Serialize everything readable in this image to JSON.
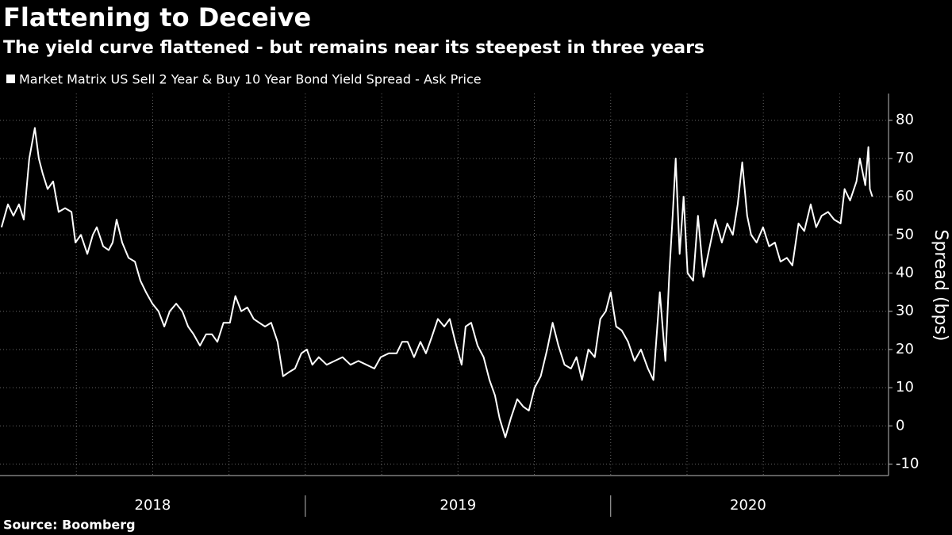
{
  "chart_data": {
    "type": "line",
    "title": "Flattening to Deceive",
    "subtitle": "The yield curve flattened - but remains near its steepest in three years",
    "source": "Source: Boomberg",
    "y_label": "Spread (bps)",
    "x": [
      2018.005,
      2018.026,
      2018.044,
      2018.062,
      2018.078,
      2018.096,
      2018.114,
      2018.127,
      2018.14,
      2018.156,
      2018.174,
      2018.192,
      2018.213,
      2018.234,
      2018.247,
      2018.265,
      2018.286,
      2018.304,
      2018.317,
      2018.338,
      2018.356,
      2018.369,
      2018.382,
      2018.4,
      2018.421,
      2018.442,
      2018.46,
      2018.478,
      2018.499,
      2018.519,
      2018.538,
      2018.556,
      2018.577,
      2018.597,
      2018.616,
      2018.634,
      2018.655,
      2018.675,
      2018.694,
      2018.712,
      2018.732,
      2018.753,
      2018.771,
      2018.79,
      2018.81,
      2018.831,
      2018.849,
      2018.868,
      2018.888,
      2018.909,
      2018.927,
      2018.945,
      2018.966,
      2018.987,
      2019.005,
      2019.023,
      2019.044,
      2019.07,
      2019.096,
      2019.122,
      2019.148,
      2019.174,
      2019.2,
      2019.226,
      2019.247,
      2019.273,
      2019.299,
      2019.317,
      2019.335,
      2019.356,
      2019.377,
      2019.395,
      2019.413,
      2019.434,
      2019.455,
      2019.473,
      2019.491,
      2019.512,
      2019.525,
      2019.543,
      2019.564,
      2019.584,
      2019.603,
      2019.621,
      2019.636,
      2019.655,
      2019.673,
      2019.694,
      2019.714,
      2019.732,
      2019.751,
      2019.771,
      2019.792,
      2019.81,
      2019.829,
      2019.849,
      2019.87,
      2019.888,
      2019.906,
      2019.927,
      2019.948,
      2019.966,
      2019.984,
      2020.0,
      2020.018,
      2020.036,
      2020.057,
      2020.078,
      2020.099,
      2020.122,
      2020.14,
      2020.161,
      2020.179,
      2020.192,
      2020.203,
      2020.213,
      2020.226,
      2020.239,
      2020.252,
      2020.27,
      2020.286,
      2020.304,
      2020.322,
      2020.343,
      2020.364,
      2020.382,
      2020.4,
      2020.416,
      2020.431,
      2020.447,
      2020.46,
      2020.478,
      2020.499,
      2020.519,
      2020.538,
      2020.556,
      2020.577,
      2020.595,
      2020.615,
      2020.634,
      2020.655,
      2020.673,
      2020.691,
      2020.712,
      2020.732,
      2020.753,
      2020.766,
      2020.784,
      2020.805,
      2020.816,
      2020.834,
      2020.844,
      2020.849,
      2020.857
    ],
    "series": [
      {
        "name": "Market Matrix US Sell 2 Year & Buy 10 Year Bond Yield Spread - Ask Price",
        "color": "#ffffff",
        "values": [
          52,
          58,
          55,
          58,
          54,
          70,
          78,
          70,
          66,
          62,
          64,
          56,
          57,
          56,
          48,
          50,
          45,
          50,
          52,
          47,
          46,
          48,
          54,
          48,
          44,
          43,
          38,
          35,
          32,
          30,
          26,
          30,
          32,
          30,
          26,
          24,
          21,
          24,
          24,
          22,
          27,
          27,
          34,
          30,
          31,
          28,
          27,
          26,
          27,
          22,
          13,
          14,
          15,
          19,
          20,
          16,
          18,
          16,
          17,
          18,
          16,
          17,
          16,
          15,
          18,
          19,
          19,
          22,
          22,
          18,
          22,
          19,
          23,
          28,
          26,
          28,
          22,
          16,
          26,
          27,
          21,
          18,
          12,
          8,
          2,
          -3,
          2,
          7,
          5,
          4,
          10,
          13,
          20,
          27,
          21,
          16,
          15,
          18,
          12,
          20,
          18,
          28,
          30,
          35,
          26,
          25,
          22,
          17,
          20,
          15,
          12,
          35,
          17,
          40,
          55,
          70,
          45,
          60,
          40,
          38,
          55,
          39,
          46,
          54,
          48,
          53,
          50,
          58,
          69,
          55,
          50,
          48,
          52,
          47,
          48,
          43,
          44,
          42,
          53,
          51,
          58,
          52,
          55,
          56,
          54,
          53,
          62,
          59,
          64,
          70,
          63,
          73,
          62,
          60
        ]
      }
    ],
    "xlim": [
      2018.0,
      2020.91
    ],
    "xticks": [
      {
        "value": 2018.5,
        "label": "2018"
      },
      {
        "value": 2019.5,
        "label": "2019"
      },
      {
        "value": 2020.45,
        "label": "2020"
      }
    ],
    "xseparators": [
      2019,
      2020
    ],
    "xgrid": [
      2018.25,
      2018.5,
      2018.75,
      2019,
      2019.25,
      2019.5,
      2019.75,
      2020,
      2020.25,
      2020.5,
      2020.75
    ],
    "ylim": [
      -13,
      87
    ],
    "yticks": [
      -10,
      0,
      10,
      20,
      30,
      40,
      50,
      60,
      70,
      80
    ],
    "grid": true,
    "axis_side": "right"
  }
}
